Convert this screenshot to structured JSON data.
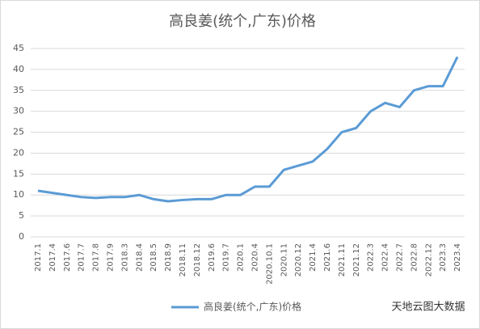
{
  "chart_data": {
    "type": "line",
    "title": "高良姜(统个,广东)价格",
    "categories": [
      "2017.1",
      "2017.4",
      "2017.6",
      "2017.7",
      "2017.8",
      "2017.9",
      "2018.3",
      "2018.4",
      "2018.5",
      "2018.9",
      "2018.11",
      "2018.12",
      "2019.6",
      "2019.7",
      "2020.1",
      "2020.4",
      "2020.10.1",
      "2020.11",
      "2020.12",
      "2021.4",
      "2021.6",
      "2021.11",
      "2021.12",
      "2022.3",
      "2022.4",
      "2022.7",
      "2022.8",
      "2022.12",
      "2023.3",
      "2023.4"
    ],
    "series": [
      {
        "name": "高良姜(统个,广东)价格",
        "color": "#5b9bd5",
        "values": [
          11,
          10.5,
          10,
          9.5,
          9.3,
          9.5,
          9.5,
          10,
          9,
          8.5,
          8.8,
          9,
          9,
          10,
          10,
          12,
          12,
          16,
          17,
          18,
          21,
          25,
          26,
          30,
          32,
          31,
          35,
          36,
          36,
          43
        ]
      }
    ],
    "ylim": [
      0,
      45
    ],
    "yticks": [
      0,
      5,
      10,
      15,
      20,
      25,
      30,
      35,
      40,
      45
    ],
    "grid": true,
    "legend": "bottom",
    "watermark": "天地云图大数据"
  }
}
